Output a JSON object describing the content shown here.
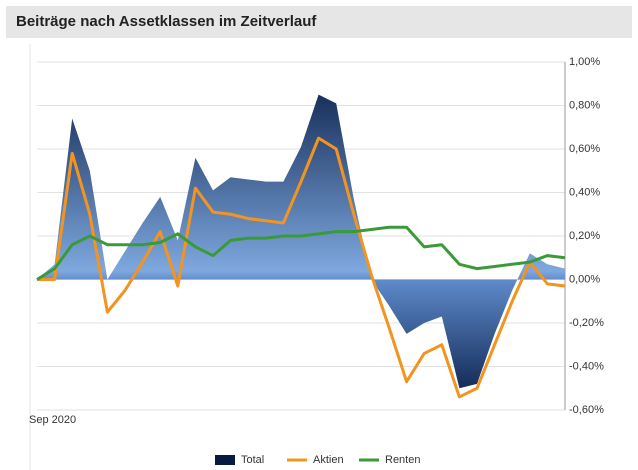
{
  "chart_data": {
    "type": "line",
    "title": "Beiträge nach Assetklassen im Zeitverlauf",
    "categories": [
      "Sep 2020",
      null,
      null,
      null,
      null,
      null,
      null,
      null,
      null,
      null,
      null,
      null,
      null,
      null,
      null,
      null,
      null,
      null,
      null,
      null,
      null,
      null,
      null,
      null,
      null,
      null,
      null,
      null,
      null,
      null,
      null
    ],
    "series": [
      {
        "name": "Total",
        "type": "area",
        "color": "#1f4e9c",
        "values": [
          0,
          0.07,
          0.74,
          0.5,
          0,
          0.13,
          0.26,
          0.38,
          0.18,
          0.56,
          0.41,
          0.47,
          0.46,
          0.45,
          0.45,
          0.61,
          0.85,
          0.81,
          0.37,
          0,
          -0.12,
          -0.25,
          -0.2,
          -0.17,
          -0.5,
          -0.48,
          -0.25,
          -0.05,
          0.12,
          0.07,
          0.05
        ]
      },
      {
        "name": "Aktien",
        "type": "line",
        "color": "#f39420",
        "values": [
          0,
          0,
          0.58,
          0.3,
          -0.15,
          -0.05,
          0.08,
          0.22,
          -0.03,
          0.42,
          0.31,
          0.3,
          0.28,
          0.27,
          0.26,
          0.45,
          0.65,
          0.6,
          0.3,
          0.02,
          -0.22,
          -0.47,
          -0.34,
          -0.3,
          -0.54,
          -0.5,
          -0.3,
          -0.1,
          0.08,
          -0.02,
          -0.03
        ]
      },
      {
        "name": "Renten",
        "type": "line",
        "color": "#3a9a3a",
        "values": [
          0,
          0.05,
          0.16,
          0.2,
          0.16,
          0.16,
          0.16,
          0.17,
          0.21,
          0.15,
          0.11,
          0.18,
          0.19,
          0.19,
          0.2,
          0.2,
          0.21,
          0.22,
          0.22,
          0.23,
          0.24,
          0.24,
          0.15,
          0.16,
          0.07,
          0.05,
          0.06,
          0.07,
          0.08,
          0.11,
          0.1
        ]
      }
    ],
    "ylim": [
      -0.6,
      1.0
    ],
    "yticks": [
      {
        "value": 1.0,
        "label": "1,00%"
      },
      {
        "value": 0.8,
        "label": "0,80%"
      },
      {
        "value": 0.6,
        "label": "0,60%"
      },
      {
        "value": 0.4,
        "label": "0,40%"
      },
      {
        "value": 0.2,
        "label": "0,20%"
      },
      {
        "value": 0,
        "label": "0,00%"
      },
      {
        "value": -0.2,
        "label": "-0,20%"
      },
      {
        "value": -0.4,
        "label": "-0,40%"
      },
      {
        "value": -0.6,
        "label": "-0,60%"
      }
    ],
    "grid": true
  }
}
